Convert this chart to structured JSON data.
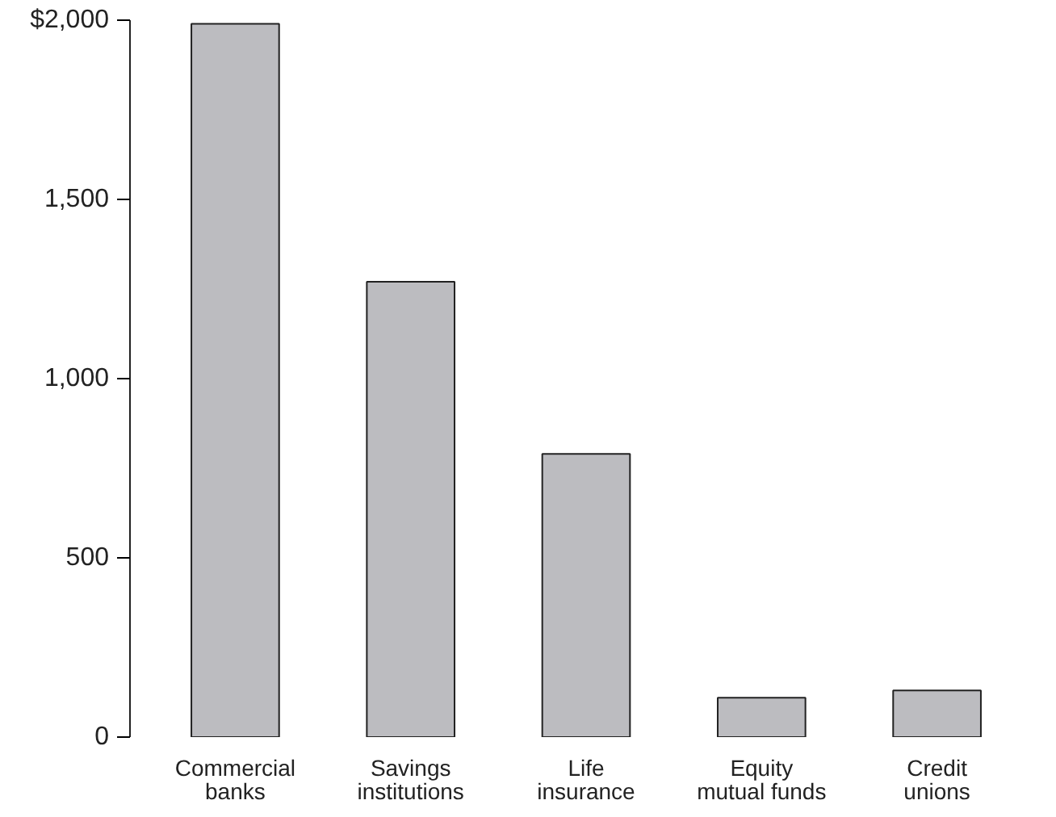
{
  "chart_data": {
    "type": "bar",
    "categories": [
      "Commercial\nbanks",
      "Savings\ninstitutions",
      "Life\ninsurance",
      "Equity\nmutual funds",
      "Credit\nunions"
    ],
    "values": [
      1990,
      1270,
      790,
      110,
      130
    ],
    "color": "#bcbcc0",
    "ylim": [
      0,
      2000
    ],
    "yticks": [
      0,
      {
        "value": 500,
        "label": "500"
      },
      {
        "value": 1000,
        "label": "1,000"
      },
      {
        "value": 1500,
        "label": "1,500"
      },
      {
        "value": 2000,
        "label": "$2,000"
      }
    ],
    "grid": false
  }
}
